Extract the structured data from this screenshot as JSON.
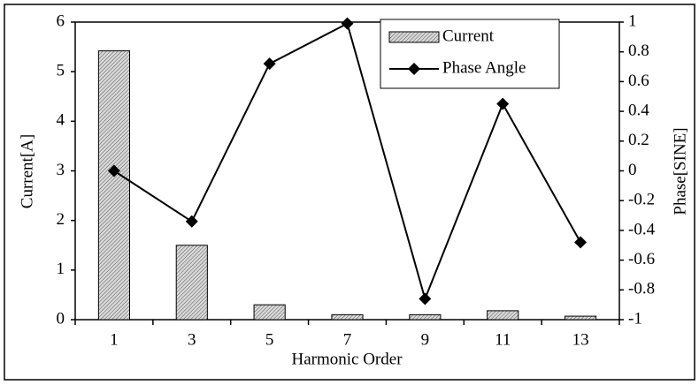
{
  "chart_data": {
    "type": "combo",
    "xlabel": "Harmonic Order",
    "ylabel": "Current[A]",
    "y2label": "Phase[SINE]",
    "categories": [
      "1",
      "3",
      "5",
      "7",
      "9",
      "11",
      "13"
    ],
    "series": [
      {
        "name": "Current",
        "type": "bar",
        "color": "#bfbfbf",
        "values": [
          5.42,
          1.5,
          0.3,
          0.1,
          0.1,
          0.18,
          0.07
        ]
      },
      {
        "name": "Phase Angle",
        "type": "line",
        "axis": "y2",
        "color": "#000000",
        "values": [
          0,
          -0.34,
          0.72,
          0.99,
          -0.86,
          0.45,
          -0.48
        ]
      }
    ],
    "ylim": [
      0,
      6
    ],
    "yticks": [
      0,
      1,
      2,
      3,
      4,
      5,
      6
    ],
    "y2lim": [
      -1,
      1
    ],
    "y2ticks": [
      -1,
      -0.8,
      -0.6,
      -0.4,
      -0.2,
      0,
      0.2,
      0.4,
      0.6,
      0.8,
      1
    ],
    "legend": "upper right"
  }
}
